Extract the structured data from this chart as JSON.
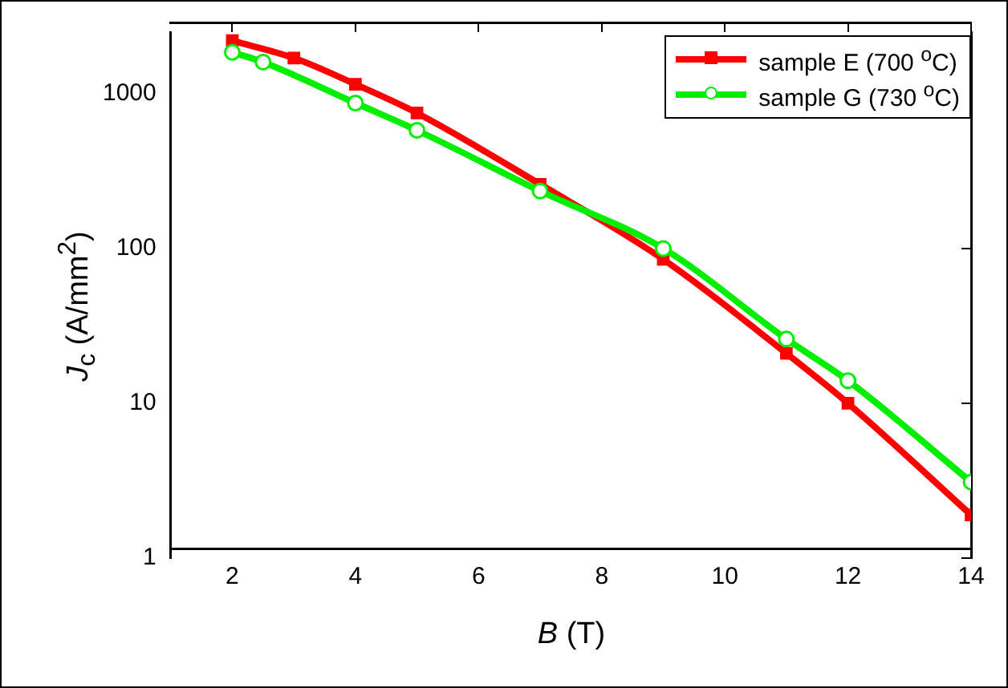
{
  "chart_data": {
    "type": "line",
    "xlabel": "B (T)",
    "ylabel": "J$_{c}$ (A/mm$^{2}$)",
    "log": "y",
    "xlim": [
      1,
      14
    ],
    "xticks": [
      2,
      4,
      6,
      8,
      10,
      12,
      14
    ],
    "ylim": [
      1,
      2500
    ],
    "yticks": [
      1,
      10,
      100,
      1000
    ],
    "grid": false,
    "legend": "top right",
    "line_style": "solid",
    "series": [
      {
        "name": "sample E (700 $^{o}$C)",
        "color": "#ff0000",
        "marker": "square",
        "x": [
          2,
          3,
          4,
          5,
          7,
          9,
          11,
          12,
          14
        ],
        "values": [
          2200,
          1700,
          1150,
          750,
          260,
          85,
          21,
          10,
          1.9
        ]
      },
      {
        "name": "sample G (730 $^{o}$C)",
        "color": "#00ee00",
        "marker": "circle",
        "x": [
          2,
          2.5,
          4,
          5,
          7,
          9,
          11,
          12,
          14
        ],
        "values": [
          1850,
          1600,
          870,
          580,
          235,
          100,
          26,
          14,
          3.1
        ]
      }
    ]
  }
}
